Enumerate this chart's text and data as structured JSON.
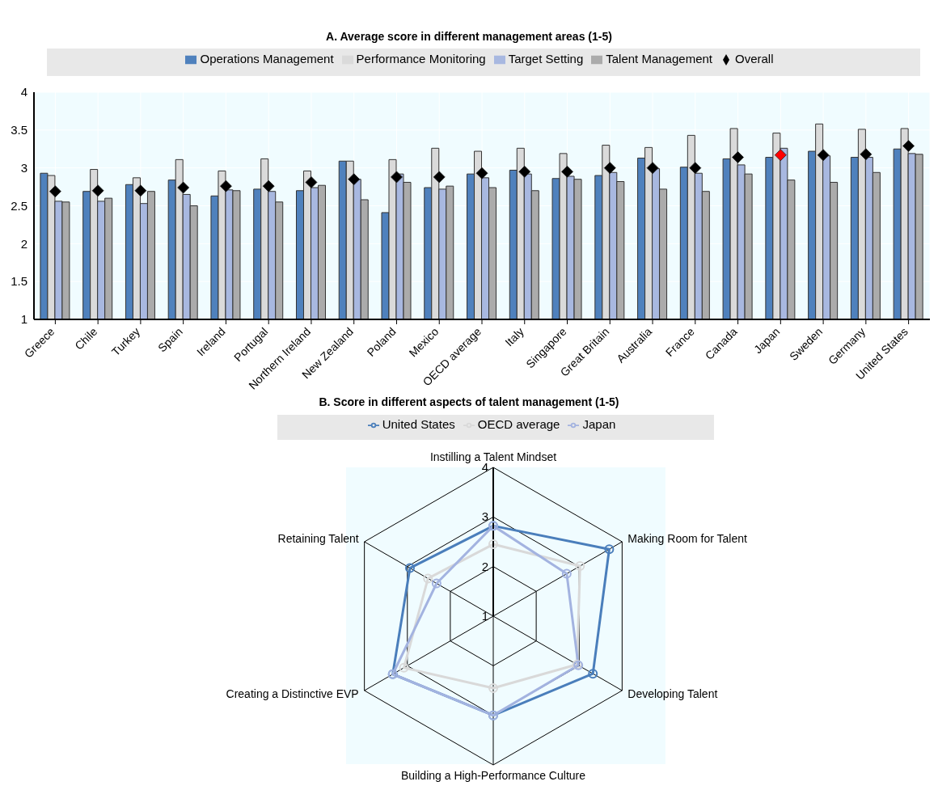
{
  "chart_data": [
    {
      "type": "bar",
      "title": "A. Average score in different management areas (1-5)",
      "categories": [
        "Greece",
        "Chile",
        "Turkey",
        "Spain",
        "Ireland",
        "Portugal",
        "Northern Ireland",
        "New Zealand",
        "Poland",
        "Mexico",
        "OECD average",
        "Italy",
        "Singapore",
        "Great Britain",
        "Australia",
        "France",
        "Canada",
        "Japan",
        "Sweden",
        "Germany",
        "United States"
      ],
      "series": [
        {
          "name": "Operations Management",
          "color": "#4f81bd",
          "values": [
            2.93,
            2.69,
            2.78,
            2.84,
            2.63,
            2.72,
            2.7,
            3.09,
            2.41,
            2.74,
            2.92,
            2.97,
            2.86,
            2.9,
            3.13,
            3.01,
            3.12,
            3.14,
            3.22,
            3.14,
            3.25
          ]
        },
        {
          "name": "Performance Monitoring",
          "color": "#dadada",
          "values": [
            2.9,
            2.98,
            2.87,
            3.11,
            2.96,
            3.12,
            2.96,
            3.09,
            3.11,
            3.26,
            3.22,
            3.26,
            3.19,
            3.3,
            3.27,
            3.43,
            3.52,
            3.46,
            3.58,
            3.51,
            3.52
          ]
        },
        {
          "name": "Target Setting",
          "color": "#a8b8e0",
          "values": [
            2.56,
            2.56,
            2.53,
            2.65,
            2.71,
            2.69,
            2.74,
            2.85,
            2.92,
            2.72,
            2.87,
            2.92,
            2.89,
            2.94,
            2.99,
            2.93,
            3.04,
            3.26,
            3.16,
            3.14,
            3.19
          ]
        },
        {
          "name": "Talent Management",
          "color": "#ababab",
          "values": [
            2.55,
            2.6,
            2.69,
            2.5,
            2.7,
            2.55,
            2.77,
            2.58,
            2.81,
            2.76,
            2.74,
            2.7,
            2.85,
            2.82,
            2.72,
            2.69,
            2.92,
            2.84,
            2.81,
            2.94,
            3.18
          ]
        },
        {
          "name": "Overall",
          "type": "scatter",
          "marker": "diamond",
          "color": "#000000",
          "colors": [
            "#000000",
            "#000000",
            "#000000",
            "#000000",
            "#000000",
            "#000000",
            "#000000",
            "#000000",
            "#000000",
            "#000000",
            "#000000",
            "#000000",
            "#000000",
            "#000000",
            "#000000",
            "#000000",
            "#000000",
            "#ff0000",
            "#000000",
            "#000000",
            "#000000"
          ],
          "values": [
            2.69,
            2.7,
            2.7,
            2.74,
            2.76,
            2.76,
            2.81,
            2.85,
            2.88,
            2.88,
            2.93,
            2.95,
            2.95,
            3.0,
            3.0,
            3.0,
            3.14,
            3.17,
            3.17,
            3.18,
            3.29
          ]
        }
      ],
      "ylim": [
        1,
        4
      ],
      "yticks": [
        1,
        1.5,
        2,
        2.5,
        3,
        3.5,
        4
      ],
      "grid": true,
      "legend": "top"
    },
    {
      "type": "radar",
      "title": "B. Score in different aspects of talent management (1-5)",
      "categories": [
        "Instilling a Talent Mindset",
        "Making Room for Talent",
        "Developing Talent",
        "Building a High-Performance Culture",
        "Creating a Distinctive EVP",
        "Retaining Talent"
      ],
      "series": [
        {
          "name": "United States",
          "color": "#4a7ebb",
          "values": [
            2.82,
            3.7,
            3.32,
            3.0,
            3.34,
            2.94
          ]
        },
        {
          "name": "OECD average",
          "color": "#d9d9d9",
          "values": [
            2.45,
            3.02,
            2.95,
            2.45,
            3.08,
            2.52
          ]
        },
        {
          "name": "Japan",
          "color": "#a3b3e0",
          "values": [
            2.82,
            2.71,
            2.98,
            3.0,
            3.34,
            2.32
          ]
        }
      ],
      "ylim": [
        1,
        4
      ],
      "yticks": [
        1,
        2,
        3,
        4
      ],
      "marker": "circle",
      "legend": "top"
    }
  ]
}
